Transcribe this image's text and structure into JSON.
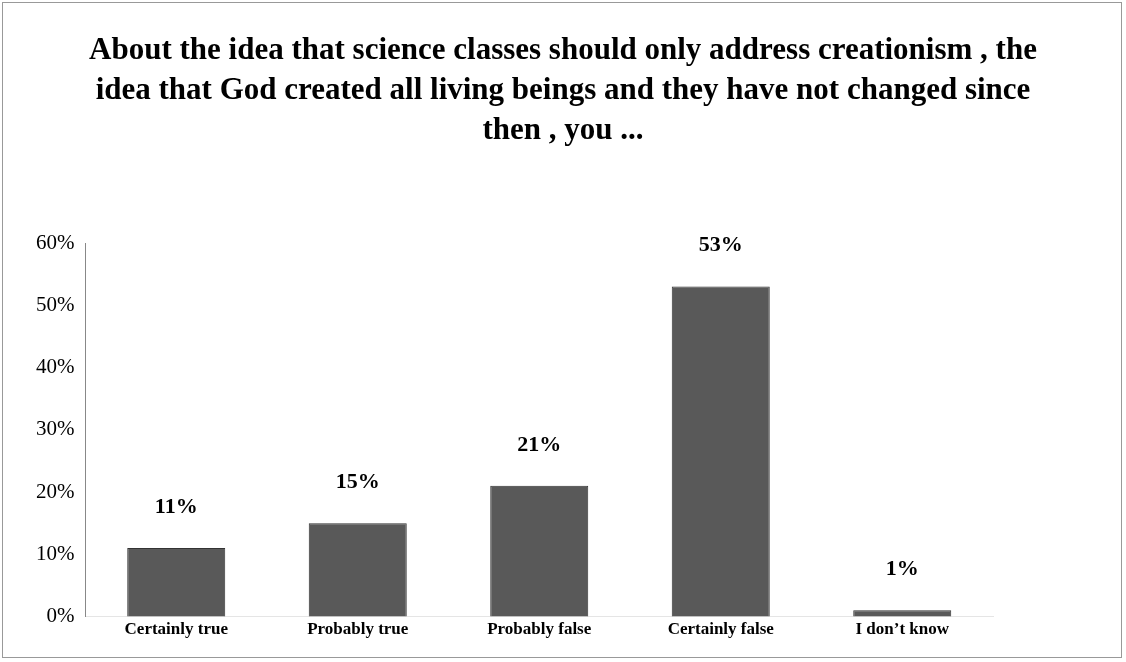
{
  "chart_data": {
    "type": "bar",
    "title": "About the idea that science classes should only address creationism , the idea that God created all living beings and they have not changed since then , you ...",
    "categories": [
      "Certainly true",
      "Probably true",
      "Probably false",
      "Certainly false",
      "I don’t know"
    ],
    "values": [
      11,
      15,
      21,
      53,
      1
    ],
    "value_labels": [
      "11%",
      "15%",
      "21%",
      "53%",
      "1%"
    ],
    "color": "#595959",
    "ylim": [
      0,
      60
    ],
    "yticks": [
      {
        "value": 0,
        "label": "0%"
      },
      {
        "value": 10,
        "label": "10%"
      },
      {
        "value": 20,
        "label": "20%"
      },
      {
        "value": 30,
        "label": "30%"
      },
      {
        "value": 40,
        "label": "40%"
      },
      {
        "value": 50,
        "label": "50%"
      },
      {
        "value": 60,
        "label": "60%"
      }
    ],
    "grid": false,
    "legend": false
  }
}
